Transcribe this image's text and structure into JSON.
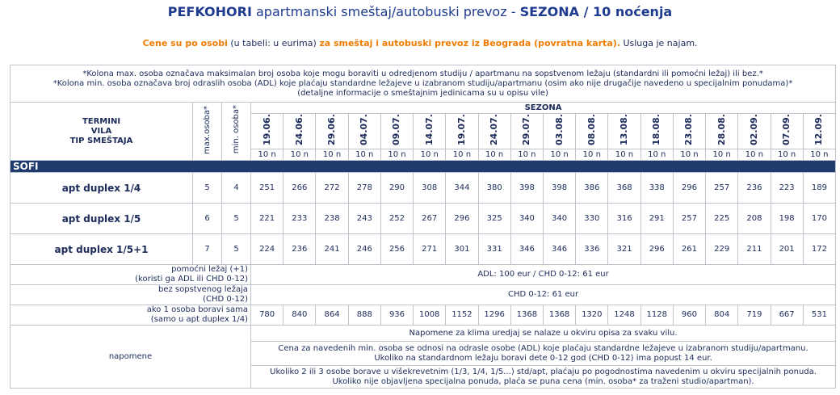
{
  "header": {
    "title": {
      "bold_1": "PEFKOHORI",
      "normal": "apartmanski smeštaj/autobuski prevoz -",
      "bold_2": "SEZONA / 10 noćenja"
    },
    "subtitle": {
      "orange_1": "Cene su po osobi",
      "normal_1": "(u tabeli: u eurima)",
      "orange_2": "za smeštaj i autobuski prevoz iz Beograda (povratna karta).",
      "normal_2": "Usluga je najam."
    }
  },
  "notes": [
    "*Kolona max. osoba označava maksimalan broj osoba koje mogu boraviti u odredjenom studiju / apartmanu na sopstvenom ležaju (standardni ili pomoćni ležaj) ili bez.*",
    "*Kolona min. osoba označava broj odraslih osoba (ADL) koje plaćaju standardne ležajeve u izabranom studiju/apartmanu (osim ako nije drugačije navedeno u specijalnim ponudama)*",
    "(detaljne informacije o smeštajnim jedinicama su u opisu vile)"
  ],
  "table": {
    "head": {
      "col1": [
        "TERMINI",
        "VILA",
        "TIP SMEŠTAJA"
      ],
      "max": "max.osoba*",
      "min": "min. osoba*",
      "season": "SEZONA",
      "dates": [
        "19.06.",
        "24.06.",
        "29.06.",
        "04.07.",
        "09.07.",
        "14.07.",
        "19.07.",
        "24.07.",
        "29.07.",
        "03.08.",
        "08.08.",
        "13.08.",
        "18.08.",
        "23.08.",
        "28.08.",
        "02.09.",
        "07.09.",
        "12.09."
      ],
      "nights": [
        "10 n",
        "10 n",
        "10 n",
        "10 n",
        "10 n",
        "10 n",
        "10 n",
        "10 n",
        "10 n",
        "10 n",
        "10 n",
        "10 n",
        "10 n",
        "10 n",
        "10 n",
        "10 n",
        "10 n",
        "10 n"
      ]
    },
    "section": "SOFI",
    "rows": [
      {
        "name": "apt duplex 1/4",
        "max": 5,
        "min": 4,
        "prices": [
          251,
          266,
          272,
          278,
          290,
          308,
          344,
          380,
          398,
          398,
          386,
          368,
          338,
          296,
          257,
          236,
          223,
          189
        ]
      },
      {
        "name": "apt duplex 1/5",
        "max": 6,
        "min": 5,
        "prices": [
          221,
          233,
          238,
          243,
          252,
          267,
          296,
          325,
          340,
          340,
          330,
          316,
          291,
          257,
          225,
          208,
          198,
          170
        ]
      },
      {
        "name": "apt duplex 1/5+1",
        "max": 7,
        "min": 5,
        "prices": [
          224,
          236,
          241,
          246,
          256,
          271,
          301,
          331,
          346,
          346,
          336,
          321,
          296,
          261,
          229,
          211,
          201,
          172
        ]
      }
    ],
    "extras": [
      {
        "label": [
          "pomoćni ležaj (+1)",
          "(koristi ga ADL ili CHD 0-12)"
        ],
        "value": "ADL: 100 eur / CHD 0-12: 61 eur"
      },
      {
        "label": [
          "bez sopstvenog ležaja",
          "(CHD 0-12)"
        ],
        "value": "CHD 0-12: 61 eur"
      },
      {
        "label": [
          "ako 1 osoba boravi sama",
          "(samo u apt duplex 1/4)"
        ],
        "prices": [
          780,
          840,
          864,
          888,
          936,
          1008,
          1152,
          1296,
          1368,
          1368,
          1320,
          1248,
          1128,
          960,
          804,
          719,
          667,
          531
        ]
      }
    ],
    "remarks": {
      "label": "napomene",
      "cells": [
        [
          "Napomene za klima uredjaj se nalaze u okviru opisa za svaku vilu."
        ],
        [
          "Cena za  navedenih min. osoba se odnosi na odrasle osobe (ADL) koje plaćaju standardne ležajeve u izabranom studiju/apartmanu.",
          "Ukoliko na standardnom ležaju boravi dete 0-12 god (CHD 0-12) ima popust 14 eur."
        ],
        [
          "Ukoliko 2 ili 3 osobe borave u višekrevetnim (1/3, 1/4, 1/5...) std/apt, plaćaju po pogodnostima navedenim u okviru specijalnih ponuda.",
          "Ukoliko nije objavljena specijalna ponuda, plaća se puna cena (min. osoba* za traženi studio/apartman)."
        ]
      ]
    }
  }
}
